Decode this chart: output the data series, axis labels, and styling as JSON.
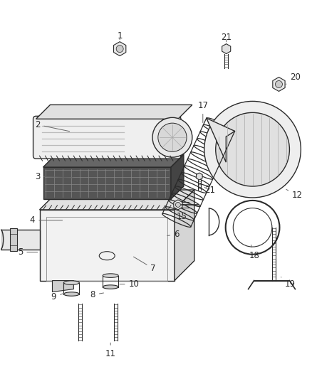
{
  "bg_color": "#ffffff",
  "line_color": "#2a2a2a",
  "label_color": "#2a2a2a",
  "fig_w": 4.38,
  "fig_h": 5.33,
  "dpi": 100
}
